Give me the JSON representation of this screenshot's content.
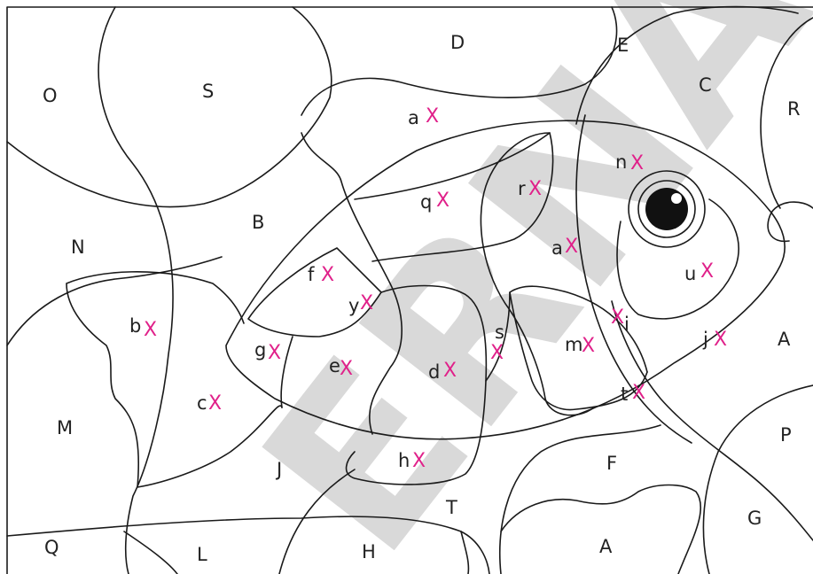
{
  "watermark": {
    "text": "ERNA",
    "color": "#d9d9d9"
  },
  "colors": {
    "outline": "#1a1a1a",
    "marker": "#e0218a",
    "label": "#222222",
    "pupil": "#111111"
  },
  "marker_symbol": "X",
  "regions": [
    {
      "id": "O",
      "text": "O"
    },
    {
      "id": "S",
      "text": "S"
    },
    {
      "id": "D",
      "text": "D"
    },
    {
      "id": "E",
      "text": "E"
    },
    {
      "id": "C",
      "text": "C"
    },
    {
      "id": "R",
      "text": "R"
    },
    {
      "id": "a1",
      "text": "a"
    },
    {
      "id": "n",
      "text": "n"
    },
    {
      "id": "r",
      "text": "r"
    },
    {
      "id": "q",
      "text": "q"
    },
    {
      "id": "B",
      "text": "B"
    },
    {
      "id": "N",
      "text": "N"
    },
    {
      "id": "a2",
      "text": "a"
    },
    {
      "id": "u",
      "text": "u"
    },
    {
      "id": "f",
      "text": "f"
    },
    {
      "id": "y",
      "text": "y"
    },
    {
      "id": "b",
      "text": "b"
    },
    {
      "id": "s",
      "text": "s"
    },
    {
      "id": "i",
      "text": "i"
    },
    {
      "id": "j",
      "text": "j"
    },
    {
      "id": "A1",
      "text": "A"
    },
    {
      "id": "g",
      "text": "g"
    },
    {
      "id": "m",
      "text": "m"
    },
    {
      "id": "e",
      "text": "e"
    },
    {
      "id": "d",
      "text": "d"
    },
    {
      "id": "c",
      "text": "c"
    },
    {
      "id": "t",
      "text": "t"
    },
    {
      "id": "M",
      "text": "M"
    },
    {
      "id": "P",
      "text": "P"
    },
    {
      "id": "F",
      "text": "F"
    },
    {
      "id": "J",
      "text": "J"
    },
    {
      "id": "h",
      "text": "h"
    },
    {
      "id": "T",
      "text": "T"
    },
    {
      "id": "G",
      "text": "G"
    },
    {
      "id": "Q",
      "text": "Q"
    },
    {
      "id": "A2",
      "text": "A"
    },
    {
      "id": "L",
      "text": "L"
    },
    {
      "id": "H",
      "text": "H"
    }
  ]
}
